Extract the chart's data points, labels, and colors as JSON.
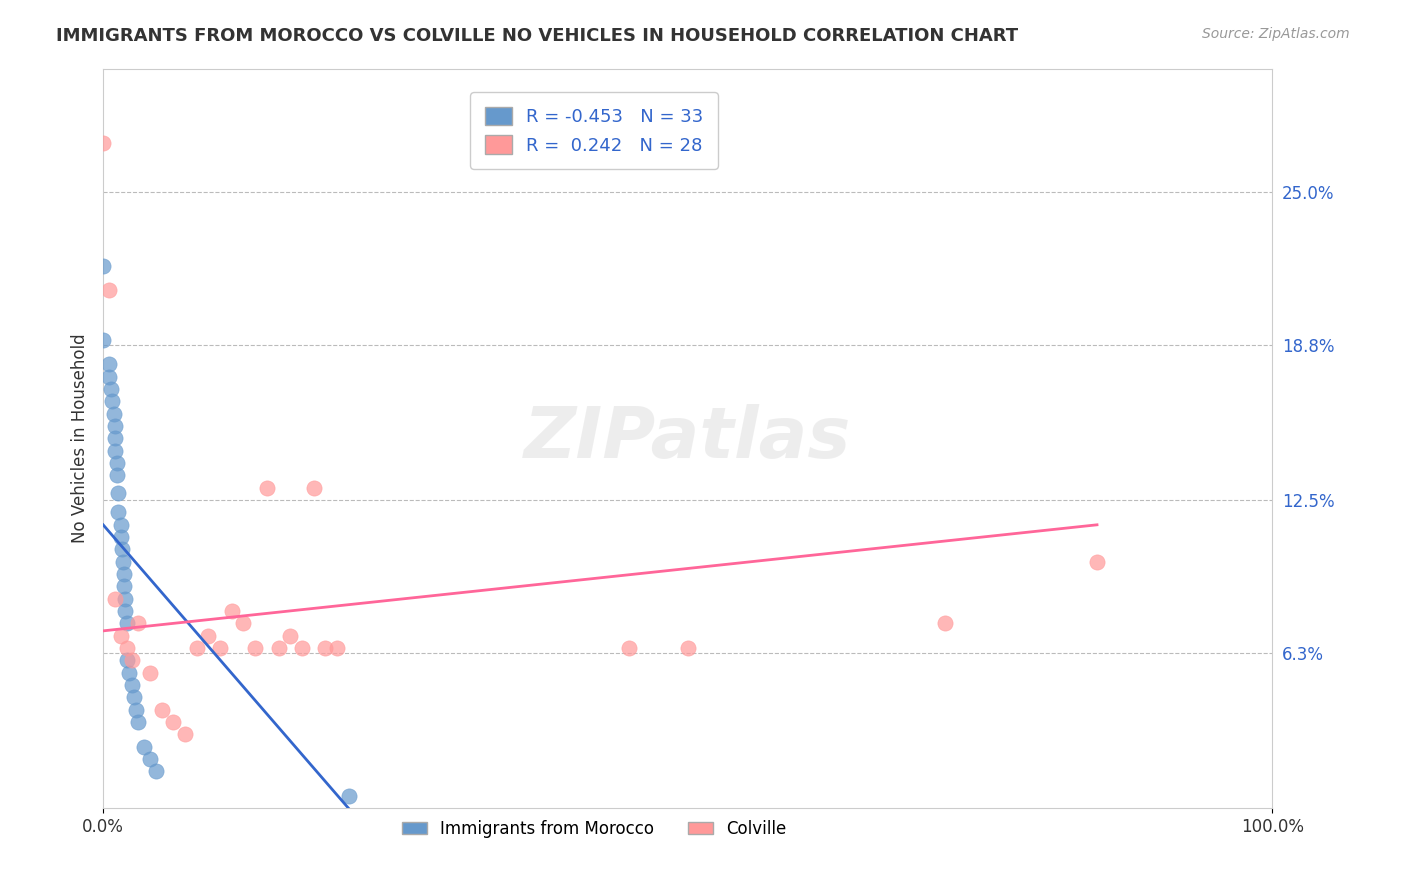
{
  "title": "IMMIGRANTS FROM MOROCCO VS COLVILLE NO VEHICLES IN HOUSEHOLD CORRELATION CHART",
  "source_text": "Source: ZipAtlas.com",
  "ylabel": "No Vehicles in Household",
  "xlabel": "",
  "xlim": [
    0.0,
    1.0
  ],
  "ylim": [
    0.0,
    0.3
  ],
  "x_ticks": [
    0.0,
    1.0
  ],
  "x_tick_labels": [
    "0.0%",
    "100.0%"
  ],
  "y_tick_labels_right": [
    "25.0%",
    "18.8%",
    "12.5%",
    "6.3%"
  ],
  "y_tick_values_right": [
    0.25,
    0.188,
    0.125,
    0.063
  ],
  "legend_r1": "R = -0.453",
  "legend_n1": "N = 33",
  "legend_r2": "R =  0.242",
  "legend_n2": "N = 28",
  "blue_color": "#6699CC",
  "pink_color": "#FF9999",
  "line_blue": "#3366CC",
  "line_pink": "#FF6699",
  "watermark": "ZIPatlas",
  "blue_scatter_x": [
    0.0,
    0.0,
    0.005,
    0.005,
    0.007,
    0.008,
    0.009,
    0.01,
    0.01,
    0.01,
    0.012,
    0.012,
    0.013,
    0.013,
    0.015,
    0.015,
    0.016,
    0.017,
    0.018,
    0.018,
    0.019,
    0.019,
    0.02,
    0.02,
    0.022,
    0.025,
    0.026,
    0.028,
    0.03,
    0.035,
    0.04,
    0.045,
    0.21
  ],
  "blue_scatter_y": [
    0.22,
    0.19,
    0.18,
    0.175,
    0.17,
    0.165,
    0.16,
    0.155,
    0.15,
    0.145,
    0.14,
    0.135,
    0.128,
    0.12,
    0.115,
    0.11,
    0.105,
    0.1,
    0.095,
    0.09,
    0.085,
    0.08,
    0.075,
    0.06,
    0.055,
    0.05,
    0.045,
    0.04,
    0.035,
    0.025,
    0.02,
    0.015,
    0.005
  ],
  "pink_scatter_x": [
    0.0,
    0.005,
    0.01,
    0.015,
    0.02,
    0.025,
    0.03,
    0.04,
    0.05,
    0.06,
    0.07,
    0.08,
    0.09,
    0.1,
    0.11,
    0.12,
    0.13,
    0.14,
    0.15,
    0.16,
    0.17,
    0.18,
    0.19,
    0.2,
    0.45,
    0.5,
    0.72,
    0.85
  ],
  "pink_scatter_y": [
    0.27,
    0.21,
    0.085,
    0.07,
    0.065,
    0.06,
    0.075,
    0.055,
    0.04,
    0.035,
    0.03,
    0.065,
    0.07,
    0.065,
    0.08,
    0.075,
    0.065,
    0.13,
    0.065,
    0.07,
    0.065,
    0.13,
    0.065,
    0.065,
    0.065,
    0.065,
    0.075,
    0.1
  ],
  "blue_line_x": [
    0.0,
    0.21
  ],
  "blue_line_y": [
    0.115,
    0.0
  ],
  "pink_line_x": [
    0.0,
    0.85
  ],
  "pink_line_y": [
    0.072,
    0.115
  ]
}
